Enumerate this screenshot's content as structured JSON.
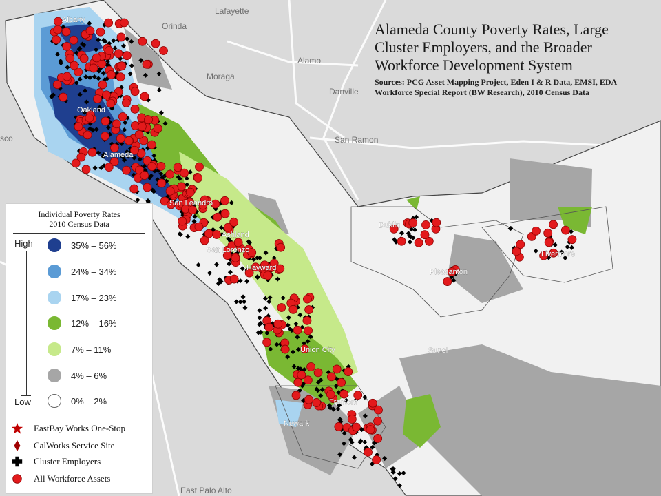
{
  "map": {
    "title": "Alameda County Poverty Rates, Large Cluster Employers, and the Broader Workforce Development System",
    "sources": "Sources: PCG Asset Mapping Project, Eden I & R Data, EMSI, EDA Workforce Special Report (BW Research), 2010 Census Data",
    "place_labels": [
      "Lafayette",
      "Orinda",
      "Moraga",
      "Alamo",
      "Danville",
      "San Ramon",
      "sco",
      "East Palo Alto"
    ],
    "city_labels": [
      "Albany",
      "Oakland",
      "Alameda",
      "San Leandro",
      "Ashland",
      "San Lorenzo",
      "Hayward",
      "Dublin",
      "Pleasanton",
      "Livermore",
      "Union City",
      "Fremont",
      "Newark",
      "Sunol"
    ]
  },
  "legend": {
    "title_line1": "Individual Poverty Rates",
    "title_line2": "2010 Census Data",
    "high_label": "High",
    "low_label": "Low",
    "classes": [
      {
        "label": "35% – 56%",
        "color": "#1f3f8f"
      },
      {
        "label": "24% – 34%",
        "color": "#5b9bd5"
      },
      {
        "label": "17% – 23%",
        "color": "#a9d4f0"
      },
      {
        "label": "12% – 16%",
        "color": "#7ab833"
      },
      {
        "label": "7% – 11%",
        "color": "#c6e98a"
      },
      {
        "label": "4% – 6%",
        "color": "#a6a6a6"
      },
      {
        "label": "0% – 2%",
        "color": "#ffffff"
      }
    ],
    "symbols": [
      {
        "label": "EastBay Works One-Stop",
        "icon": "star-icon",
        "color": "#c00000"
      },
      {
        "label": "CalWorks Service Site",
        "icon": "diamond-icon",
        "color": "#a00000"
      },
      {
        "label": "Cluster Employers",
        "icon": "cross-icon",
        "color": "#000000"
      },
      {
        "label": "All Workforce Assets",
        "icon": "circle-icon",
        "color": "#e31a1c"
      }
    ]
  },
  "colors": {
    "background": "#d9d9d9",
    "county_land": "#f2f2f2",
    "high_poverty": "#1f3f8f",
    "asset_red": "#e31a1c",
    "employer_black": "#000000"
  }
}
